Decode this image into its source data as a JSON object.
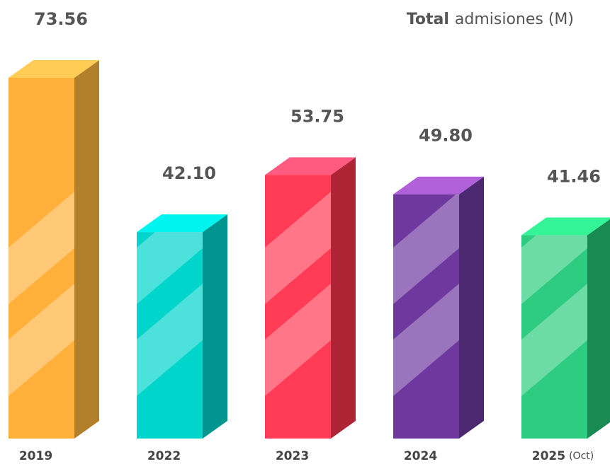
{
  "chart_data": {
    "type": "bar3d",
    "title": [
      "Total",
      "admisiones (M)"
    ],
    "categories": [
      "2019",
      "2022",
      "2023",
      "2024",
      "2025"
    ],
    "category_notes": [
      null,
      null,
      null,
      null,
      "(Oct)"
    ],
    "values": [
      73.56,
      42.1,
      53.75,
      49.8,
      41.46
    ],
    "value_labels": [
      "73.56",
      "42.10",
      "53.75",
      "49.80",
      "41.46"
    ],
    "colors": [
      "#ffb03b",
      "#00d5cc",
      "#ff3b55",
      "#6f389f",
      "#2ecc80"
    ],
    "side_colors": [
      "#b27f2a",
      "#00968f",
      "#b02535",
      "#4c2870",
      "#1a8a55"
    ],
    "top_colors": [
      "#ffcc55",
      "#00f5f0",
      "#ff5a7f",
      "#b060d8",
      "#33f598"
    ]
  }
}
